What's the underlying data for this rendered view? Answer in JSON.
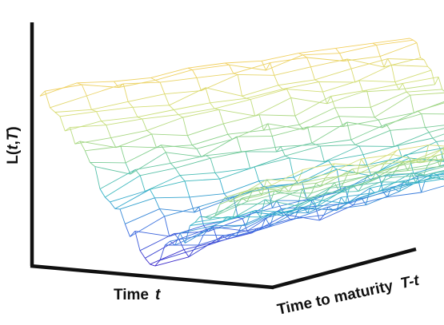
{
  "chart_data": {
    "type": "line",
    "title": "",
    "zlabel_main": "L(",
    "zlabel_t": "t",
    "zlabel_sep": ",",
    "zlabel_T": "T",
    "zlabel_end": ")",
    "xlabel_main": "Time",
    "xlabel_var": "t",
    "ylabel_main": "Time to maturity",
    "ylabel_var": "T-t",
    "grid": false,
    "legend": "none",
    "colormap": [
      "#3b24c8",
      "#3a6fe0",
      "#2fb4c8",
      "#86d08c",
      "#cfe07a",
      "#f2d060"
    ],
    "surface": {
      "time_steps": 40,
      "maturity_steps": 10,
      "level_high": 1.0,
      "level_low": 0.0,
      "min_time_fraction": 0.56,
      "seed": 7
    }
  }
}
